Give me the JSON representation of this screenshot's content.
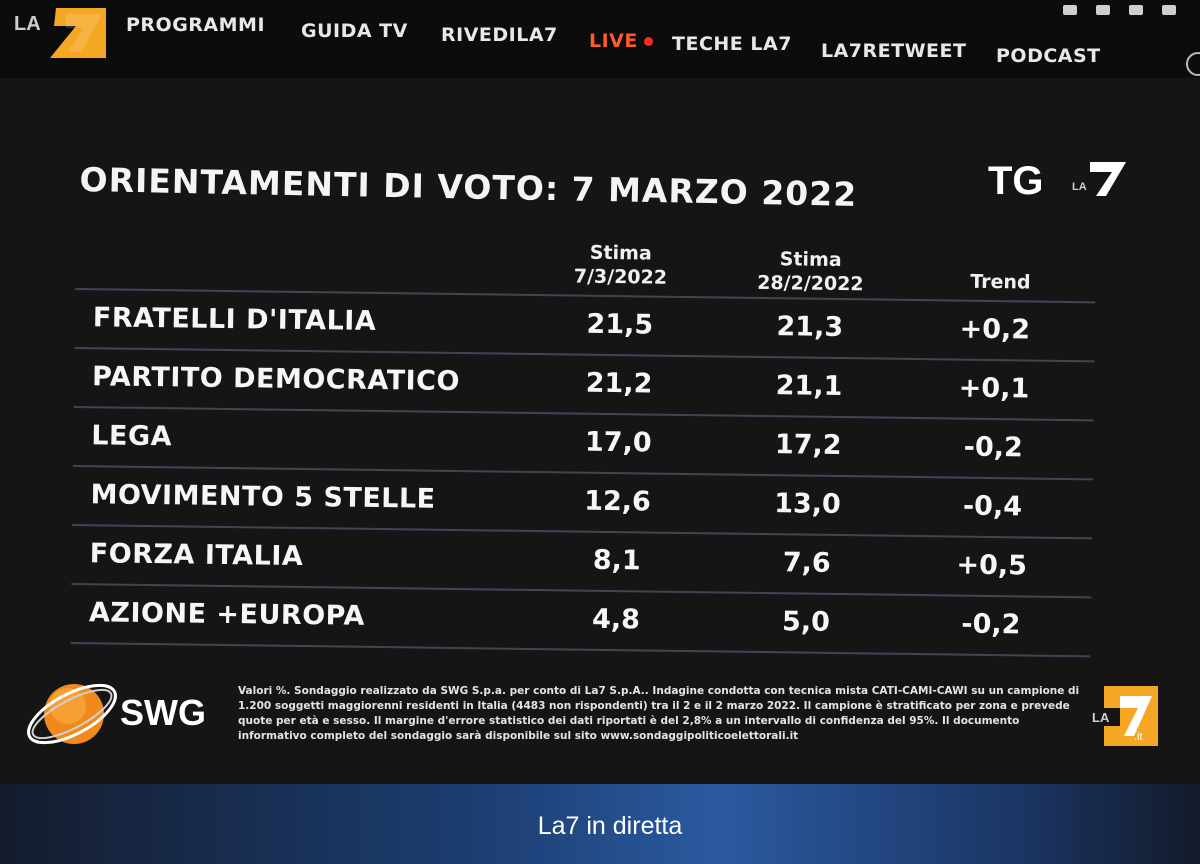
{
  "nav": {
    "items": [
      "PROGRAMMI",
      "GUIDA TV",
      "RIVEDILA7",
      "LIVE",
      "TECHE LA7",
      "LA7RETWEET",
      "PODCAST"
    ],
    "live_color": "#ff5a2a"
  },
  "logos": {
    "channel": "LA7",
    "tg": "TG LA7",
    "pollster": "SWG",
    "corner": "LA7.it"
  },
  "poll": {
    "title": "ORIENTAMENTI DI VOTO: 7 MARZO 2022",
    "columns": {
      "c1": "Stima\n7/3/2022",
      "c2": "Stima\n28/2/2022",
      "c3": "Trend"
    },
    "rows": [
      {
        "party": "FRATELLI D'ITALIA",
        "v1": "21,5",
        "v2": "21,3",
        "trend": "+0,2"
      },
      {
        "party": "PARTITO DEMOCRATICO",
        "v1": "21,2",
        "v2": "21,1",
        "trend": "+0,1"
      },
      {
        "party": "LEGA",
        "v1": "17,0",
        "v2": "17,2",
        "trend": "-0,2"
      },
      {
        "party": "MOVIMENTO 5 STELLE",
        "v1": "12,6",
        "v2": "13,0",
        "trend": "-0,4"
      },
      {
        "party": "FORZA ITALIA",
        "v1": "8,1",
        "v2": "7,6",
        "trend": "+0,5"
      },
      {
        "party": "AZIONE +EUROPA",
        "v1": "4,8",
        "v2": "5,0",
        "trend": "-0,2"
      }
    ]
  },
  "footer": {
    "swg_label": "SWG",
    "note": "Valori %. Sondaggio realizzato da SWG S.p.a. per conto di La7 S.p.A.. Indagine condotta con tecnica mista CATI-CAMI-CAWI su un campione di 1.200 soggetti maggiorenni residenti in Italia (4483 non rispondenti) tra il 2 e il 2 marzo 2022. Il campione è stratificato per zona e prevede quote per età e sesso. Il margine d'errore statistico dei dati riportati è del 2,8% a un intervallo di confidenza del 95%. Il documento informativo completo del sondaggio sarà disponibile sul sito www.sondaggipoliticoelettorali.it"
  },
  "bottom": {
    "label": "La7 in diretta"
  },
  "colors": {
    "la7_orange": "#f5a623",
    "la7_gray": "#c8c8c8",
    "swg_orange": "#f08a1c",
    "row_divider": "#3e4656"
  }
}
